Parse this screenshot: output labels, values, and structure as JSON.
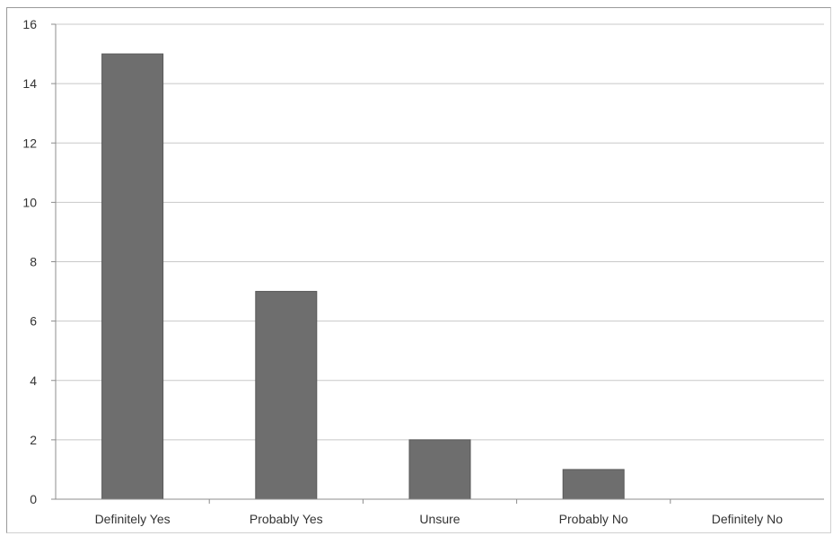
{
  "chart_data": {
    "type": "bar",
    "categories": [
      "Definitely Yes",
      "Probably Yes",
      "Unsure",
      "Probably No",
      "Definitely No"
    ],
    "values": [
      15,
      7,
      2,
      1,
      0
    ],
    "ylim": [
      0,
      16
    ],
    "yticks": [
      "0",
      "2",
      "4",
      "6",
      "8",
      "10",
      "12",
      "14",
      "16"
    ],
    "grid": true,
    "legend": "none",
    "colors": {
      "bar": "#6e6e6e",
      "bar_edge": "#585858",
      "grid": "#c8c8c8",
      "axis": "#8c8c8c"
    }
  }
}
